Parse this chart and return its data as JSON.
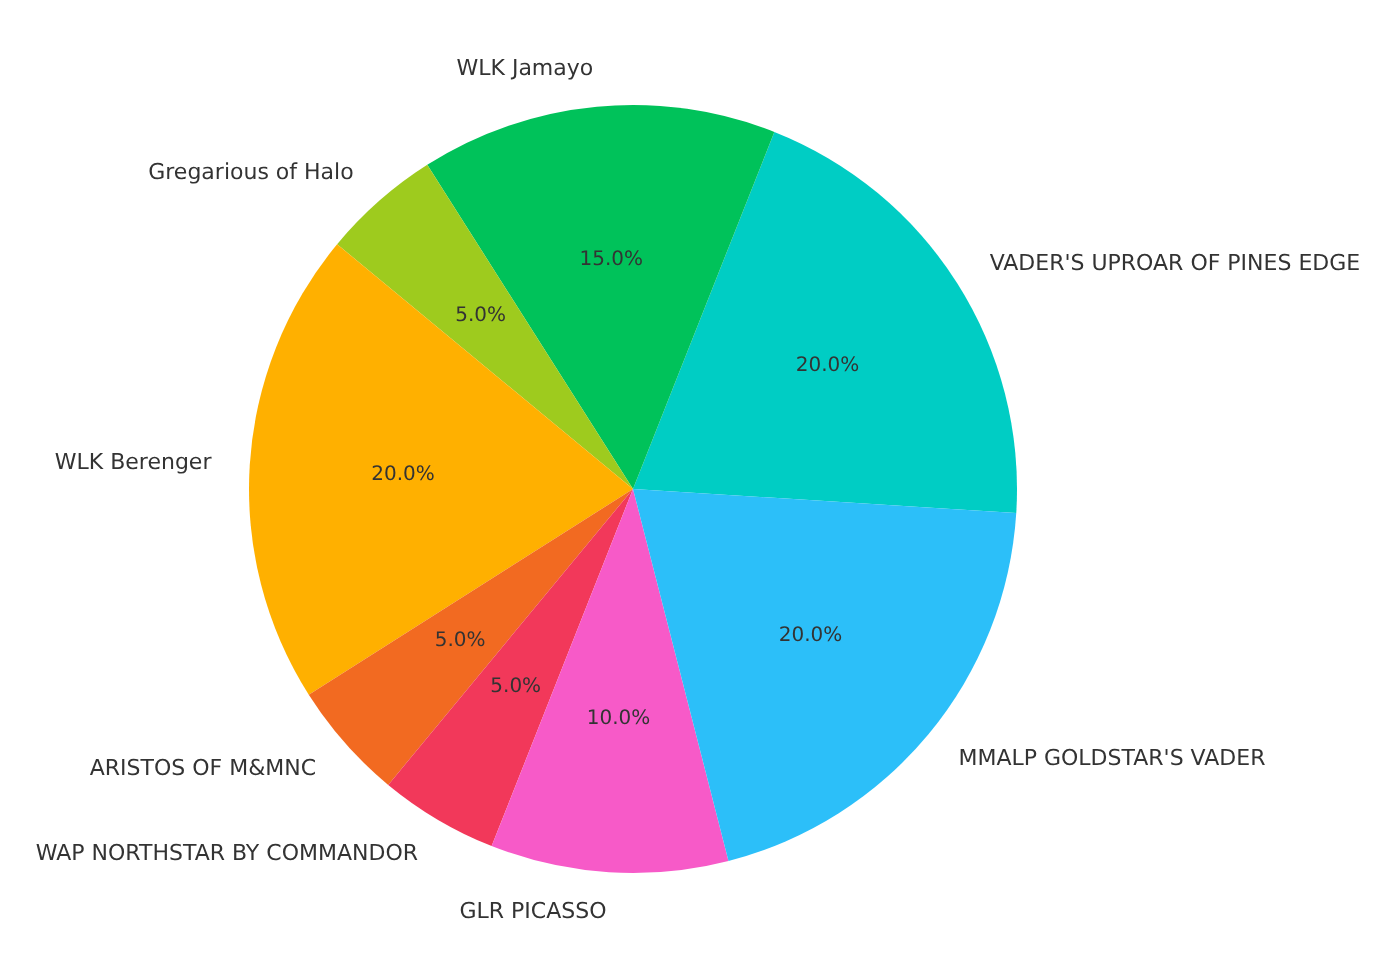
{
  "chart_data": {
    "type": "pie",
    "categories": [
      "VADER'S UPROAR OF PINES EDGE",
      "WLK Jamayo",
      "Gregarious of Halo",
      "WLK Berenger",
      "ARISTOS OF M&MNC",
      "WAP NORTHSTAR BY COMMANDOR",
      "GLR PICASSO",
      "MMALP GOLDSTAR'S VADER"
    ],
    "values": [
      20,
      15,
      5,
      20,
      5,
      5,
      10,
      20
    ],
    "colors": [
      "#00cdc4",
      "#00c25a",
      "#9ecb1e",
      "#ffb000",
      "#f26a21",
      "#f2385a",
      "#f75ac8",
      "#2cbff9"
    ],
    "value_labels": [
      "20.0%",
      "15.0%",
      "5.0%",
      "20.0%",
      "5.0%",
      "5.0%",
      "10.0%",
      "20.0%"
    ]
  }
}
